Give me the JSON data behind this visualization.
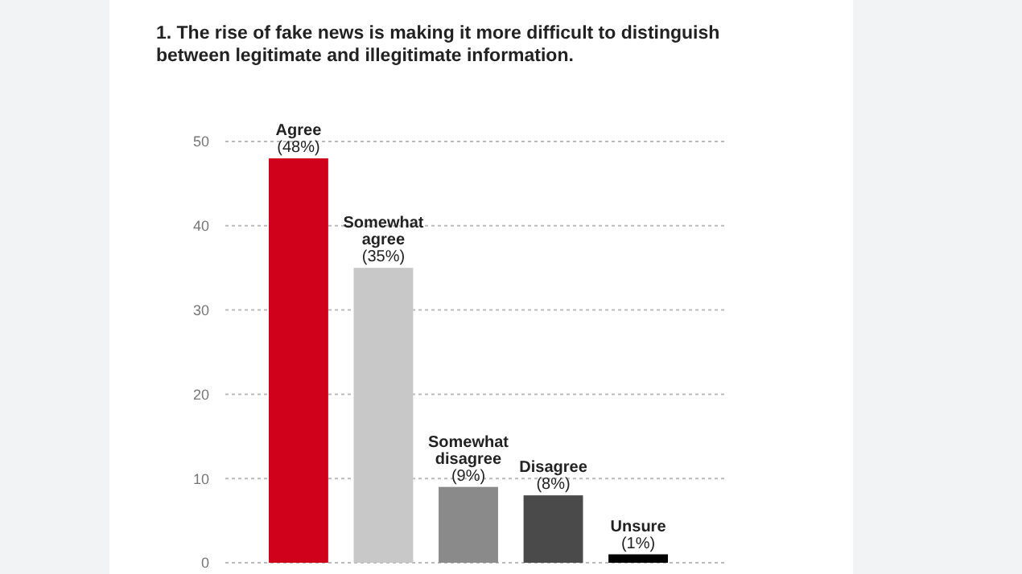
{
  "chart_data": {
    "type": "bar",
    "title": "1. The rise of fake news is making it more difficult to distinguish between legitimate and illegitimate information.",
    "categories": [
      "Agree",
      "Somewhat agree",
      "Somewhat disagree",
      "Disagree",
      "Unsure"
    ],
    "values": [
      48,
      35,
      9,
      8,
      1
    ],
    "colors": [
      "#d0021b",
      "#c8c8c8",
      "#8a8a8a",
      "#4a4a4a",
      "#000000"
    ],
    "value_labels": [
      "(48%)",
      "(35%)",
      "(9%)",
      "(8%)",
      "(1%)"
    ],
    "ylim": [
      0,
      50
    ],
    "yticks": [
      0,
      10,
      20,
      30,
      40,
      50
    ],
    "grid": "y"
  }
}
